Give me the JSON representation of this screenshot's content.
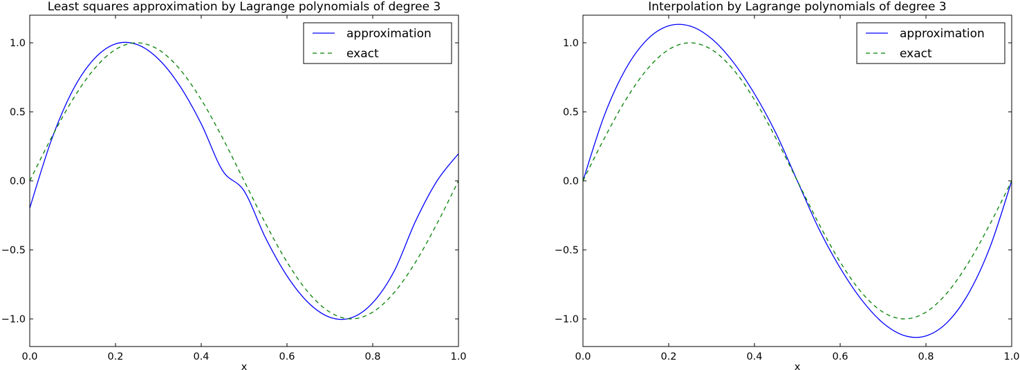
{
  "chart_data": [
    {
      "type": "line",
      "title": "Least squares approximation by Lagrange polynomials of degree 3",
      "xlabel": "x",
      "ylabel": "",
      "xlim": [
        0.0,
        1.0
      ],
      "ylim": [
        -1.2,
        1.2
      ],
      "xticks": [
        0.0,
        0.2,
        0.4,
        0.6,
        0.8,
        1.0
      ],
      "xtick_labels": [
        "0.0",
        "0.2",
        "0.4",
        "0.6",
        "0.8",
        "1.0"
      ],
      "yticks": [
        -1.0,
        -0.5,
        0.0,
        0.5,
        1.0
      ],
      "ytick_labels": [
        "−1.0",
        "−0.5",
        "0.0",
        "0.5",
        "1.0"
      ],
      "grid": false,
      "legend_position": "top-right",
      "series": [
        {
          "name": "approximation",
          "color": "#0000ff",
          "style": "solid",
          "x": [
            0,
            0.05,
            0.1,
            0.15,
            0.2,
            0.25,
            0.3,
            0.35,
            0.4,
            0.45,
            0.5,
            0.55,
            0.6,
            0.65,
            0.7,
            0.75,
            0.8,
            0.85,
            0.9,
            0.95,
            1.0
          ],
          "y": [
            -0.197,
            0.291,
            0.654,
            0.883,
            0.992,
            0.988,
            0.883,
            0.688,
            0.413,
            0.073,
            -0.073,
            -0.413,
            -0.688,
            -0.883,
            -0.988,
            -0.992,
            -0.883,
            -0.654,
            -0.291,
            0.0,
            0.197
          ]
        },
        {
          "name": "exact",
          "color": "#008000",
          "style": "dashed",
          "x": [
            0,
            0.05,
            0.1,
            0.15,
            0.2,
            0.25,
            0.3,
            0.35,
            0.4,
            0.45,
            0.5,
            0.55,
            0.6,
            0.65,
            0.7,
            0.75,
            0.8,
            0.85,
            0.9,
            0.95,
            1.0
          ],
          "y": [
            0.0,
            0.309,
            0.588,
            0.809,
            0.951,
            1.0,
            0.951,
            0.809,
            0.588,
            0.309,
            0.0,
            -0.309,
            -0.588,
            -0.809,
            -0.951,
            -1.0,
            -0.951,
            -0.809,
            -0.588,
            -0.309,
            0.0
          ]
        }
      ]
    },
    {
      "type": "line",
      "title": "Interpolation by Lagrange polynomials of degree 3",
      "xlabel": "x",
      "ylabel": "",
      "xlim": [
        0.0,
        1.0
      ],
      "ylim": [
        -1.2,
        1.2
      ],
      "xticks": [
        0.0,
        0.2,
        0.4,
        0.6,
        0.8,
        1.0
      ],
      "xtick_labels": [
        "0.0",
        "0.2",
        "0.4",
        "0.6",
        "0.8",
        "1.0"
      ],
      "yticks": [
        -1.0,
        -0.5,
        0.0,
        0.5,
        1.0
      ],
      "ytick_labels": [
        "−1.0",
        "−0.5",
        "0.0",
        "0.5",
        "1.0"
      ],
      "grid": false,
      "legend_position": "top-right",
      "series": [
        {
          "name": "approximation",
          "color": "#0000ff",
          "style": "solid",
          "x": [
            0,
            0.05,
            0.1,
            0.15,
            0.2,
            0.25,
            0.3,
            0.35,
            0.4,
            0.45,
            0.5,
            0.55,
            0.6,
            0.65,
            0.7,
            0.75,
            0.8,
            0.85,
            0.9,
            0.95,
            1.0
          ],
          "y": [
            0.0,
            0.475,
            0.812,
            1.024,
            1.123,
            1.121,
            1.03,
            0.862,
            0.631,
            0.346,
            0.0,
            -0.346,
            -0.631,
            -0.862,
            -1.03,
            -1.121,
            -1.123,
            -1.024,
            -0.812,
            -0.475,
            0.0
          ]
        },
        {
          "name": "exact",
          "color": "#008000",
          "style": "dashed",
          "x": [
            0,
            0.05,
            0.1,
            0.15,
            0.2,
            0.25,
            0.3,
            0.35,
            0.4,
            0.45,
            0.5,
            0.55,
            0.6,
            0.65,
            0.7,
            0.75,
            0.8,
            0.85,
            0.9,
            0.95,
            1.0
          ],
          "y": [
            0.0,
            0.309,
            0.588,
            0.809,
            0.951,
            1.0,
            0.951,
            0.809,
            0.588,
            0.309,
            0.0,
            -0.309,
            -0.588,
            -0.809,
            -0.951,
            -1.0,
            -0.951,
            -0.809,
            -0.588,
            -0.309,
            0.0
          ]
        }
      ]
    }
  ]
}
